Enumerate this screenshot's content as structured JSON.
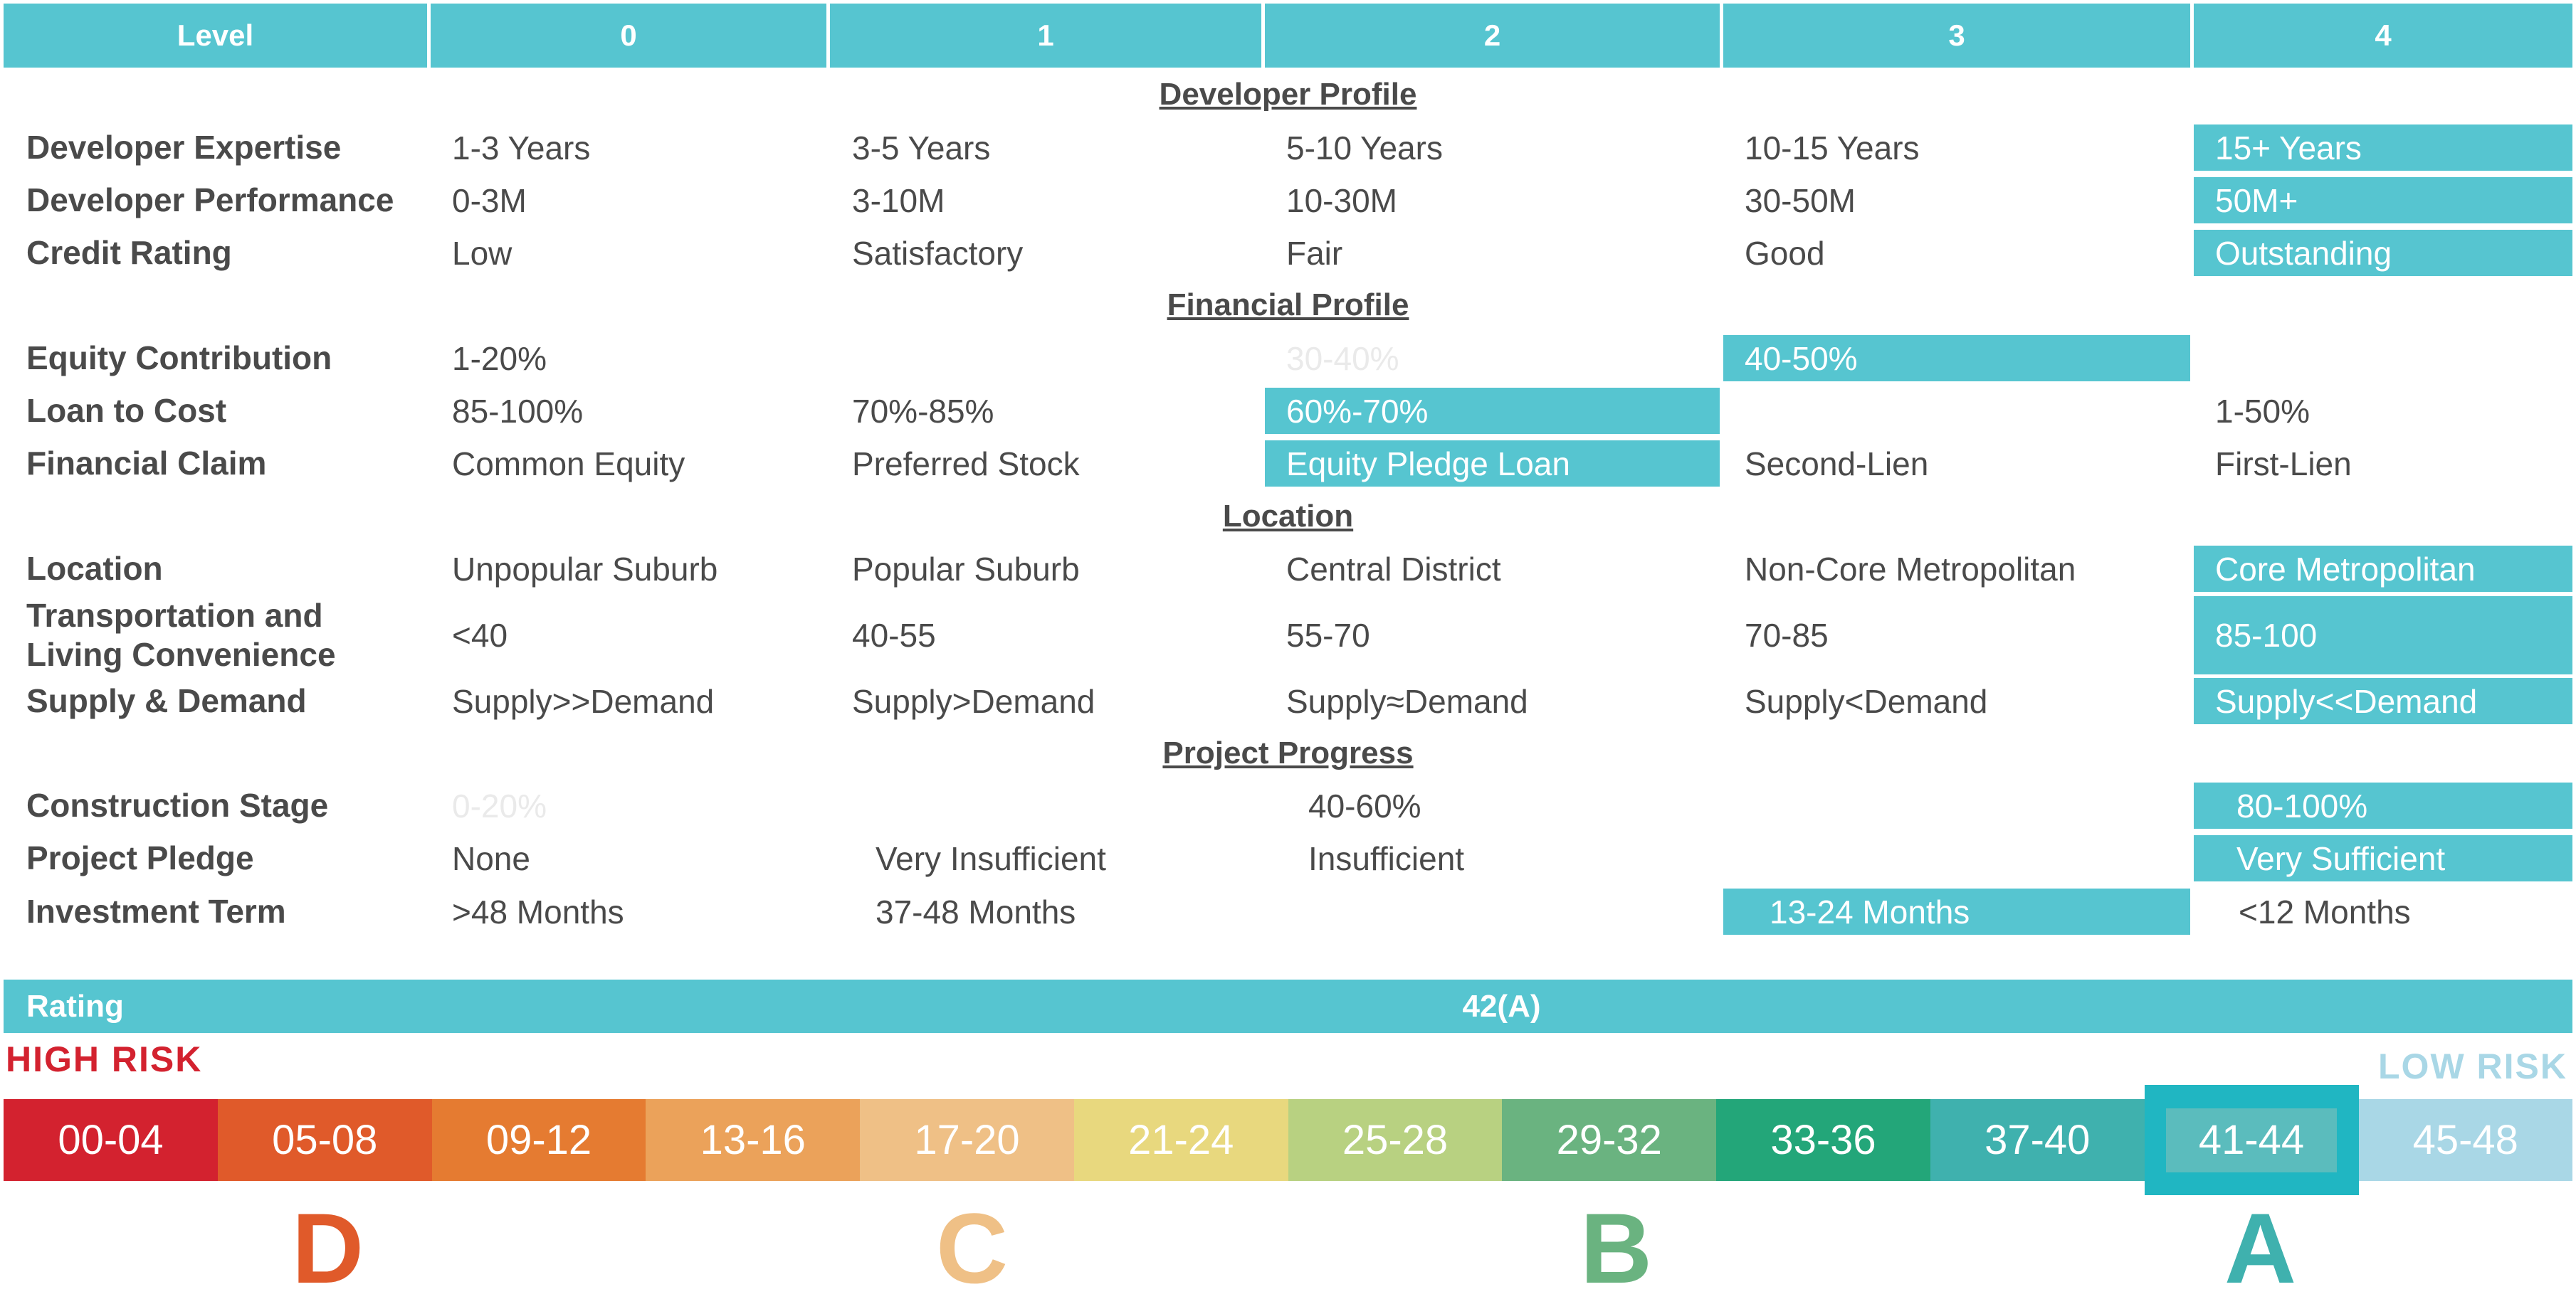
{
  "header": {
    "level_label": "Level",
    "levels": [
      "0",
      "1",
      "2",
      "3",
      "4"
    ],
    "color": "#56c5d0"
  },
  "sections": {
    "developer_profile": "Developer Profile",
    "financial_profile": "Financial Profile",
    "location": "Location",
    "project_progress": "Project Progress"
  },
  "rows": {
    "developer_expertise": {
      "label": "Developer Expertise",
      "cells": [
        "1-3 Years",
        "3-5 Years",
        "5-10 Years",
        "10-15 Years",
        "15+ Years"
      ]
    },
    "developer_performance": {
      "label": "Developer Performance",
      "cells": [
        "0-3M",
        "3-10M",
        "10-30M",
        "30-50M",
        "50M+"
      ]
    },
    "credit_rating": {
      "label": "Credit Rating",
      "cells": [
        "Low",
        "Satisfactory",
        "Fair",
        "Good",
        "Outstanding"
      ]
    },
    "equity_contribution": {
      "label": "Equity Contribution",
      "cells": [
        "1-20%",
        "30-40%",
        "40-50%"
      ]
    },
    "loan_to_cost": {
      "label": "Loan to Cost",
      "cells": [
        "85-100%",
        "70%-85%",
        "60%-70%",
        "1-50%"
      ]
    },
    "financial_claim": {
      "label": "Financial Claim",
      "cells": [
        "Common Equity",
        "Preferred Stock",
        "Equity Pledge Loan",
        "Second-Lien",
        "First-Lien"
      ]
    },
    "location": {
      "label": "Location",
      "cells": [
        "Unpopular Suburb",
        "Popular Suburb",
        "Central District",
        "Non-Core Metropolitan",
        "Core Metropolitan"
      ]
    },
    "transportation": {
      "label_line1": "Transportation and",
      "label_line2": "Living Convenience",
      "cells": [
        "<40",
        "40-55",
        "55-70",
        "70-85",
        "85-100"
      ]
    },
    "supply_demand": {
      "label": "Supply & Demand",
      "cells": [
        "Supply>>Demand",
        "Supply>Demand",
        "Supply≈Demand",
        "Supply<Demand",
        "Supply<<Demand"
      ]
    },
    "construction_stage": {
      "label": "Construction Stage",
      "cells": [
        "0-20%",
        "40-60%",
        "80-100%"
      ]
    },
    "project_pledge": {
      "label": "Project Pledge",
      "cells": [
        "None",
        "Very Insufficient",
        "Insufficient",
        "Very Sufficient"
      ]
    },
    "investment_term": {
      "label": "Investment Term",
      "cells": [
        ">48 Months",
        "37-48 Months",
        "13-24 Months",
        "<12 Months"
      ]
    }
  },
  "rating": {
    "label": "Rating",
    "value": "42(A)"
  },
  "risk": {
    "high": "HIGH RISK",
    "low": "LOW RISK",
    "high_color": "#d3222f",
    "low_color": "#a9d7e6"
  },
  "scale": {
    "segments": [
      {
        "range": "00-04",
        "color": "#d3222f"
      },
      {
        "range": "05-08",
        "color": "#e05a2a"
      },
      {
        "range": "09-12",
        "color": "#e57b31"
      },
      {
        "range": "13-16",
        "color": "#eba25a"
      },
      {
        "range": "17-20",
        "color": "#efc086"
      },
      {
        "range": "21-24",
        "color": "#e8d87e"
      },
      {
        "range": "25-28",
        "color": "#b8d181"
      },
      {
        "range": "29-32",
        "color": "#6ab380"
      },
      {
        "range": "33-36",
        "color": "#23a679"
      },
      {
        "range": "37-40",
        "color": "#3fb1ae"
      },
      {
        "range": "41-44",
        "color": "#5bbcbd",
        "selected": true
      },
      {
        "range": "45-48",
        "color": "#a9d7e6"
      }
    ],
    "grades": [
      {
        "letter": "D",
        "color": "#e05a2a"
      },
      {
        "letter": "C",
        "color": "#efc086"
      },
      {
        "letter": "B",
        "color": "#6ab380"
      },
      {
        "letter": "A",
        "color": "#3fb1ae"
      }
    ]
  }
}
